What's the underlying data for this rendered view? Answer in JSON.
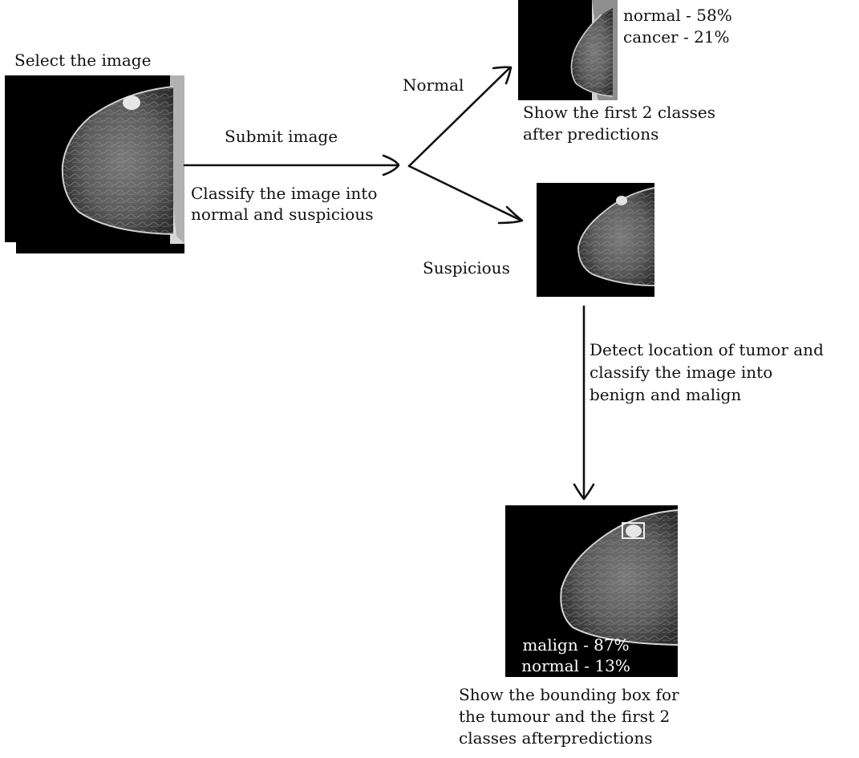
{
  "input": {
    "label": "Select the image"
  },
  "submit": {
    "label": "Submit image",
    "description_line1": "Classify the image into",
    "description_line2": "normal and suspicious"
  },
  "normal_branch": {
    "label": "Normal",
    "pred_line1": "normal - 58%",
    "pred_line2": "cancer - 21%",
    "caption_line1": "Show the first 2 classes",
    "caption_line2": "after predictions"
  },
  "suspicious_branch": {
    "label": "Suspicious",
    "step_line1": "Detect location of tumor and",
    "step_line2": "classify the image into",
    "step_line3": "benign and malign"
  },
  "result": {
    "pred_line1": "malign - 87%",
    "pred_line2": "normal - 13%",
    "caption_line1": "Show the bounding box for",
    "caption_line2": "the tumour and the first 2",
    "caption_line3": "classes afterpredictions"
  },
  "icons": {
    "mammogram": "mammogram-image",
    "arrow": "arrow-icon",
    "bounding_box": "bounding-box"
  },
  "colors": {
    "background": "#ffffff",
    "text": "#111111",
    "image_background": "#000000",
    "bounding_box": "#f0f0f0"
  }
}
